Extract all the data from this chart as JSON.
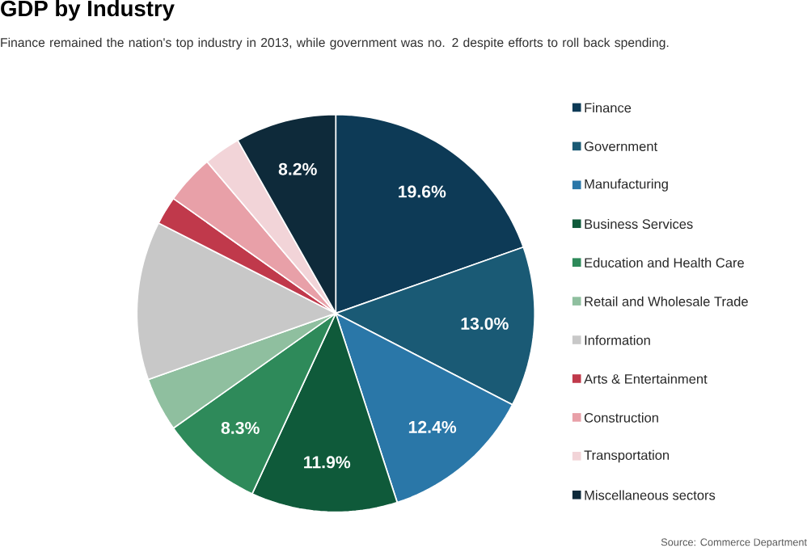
{
  "chart_data": {
    "type": "pie",
    "title": "GDP by Industry",
    "subtitle": "Finance remained the nation's top industry in 2013, while government was no. 2 despite efforts to roll back spending.",
    "categories": [
      "Finance",
      "Government",
      "Manufacturing",
      "Business Services",
      "Education and Health Care",
      "Retail and Wholesale Trade",
      "Information",
      "Arts & Entertainment",
      "Construction",
      "Transportation",
      "Miscellaneous sectors"
    ],
    "values": [
      19.6,
      13.0,
      12.4,
      11.9,
      8.3,
      4.4,
      12.9,
      2.3,
      4.0,
      3.0,
      8.2
    ],
    "colors": [
      "#0d3a56",
      "#1a5a75",
      "#2a77a8",
      "#0f5a3a",
      "#2e8a5a",
      "#8fbf9f",
      "#c8c8c8",
      "#c0394b",
      "#e8a0a8",
      "#f2d4d8",
      "#0e2a3a"
    ],
    "value_labels": [
      "19.6%",
      "13.0%",
      "12.4%",
      "11.9%",
      "8.3%",
      null,
      null,
      null,
      null,
      null,
      "8.2%"
    ],
    "legend": "right",
    "annotations": [
      "Source: Commerce Department"
    ]
  }
}
